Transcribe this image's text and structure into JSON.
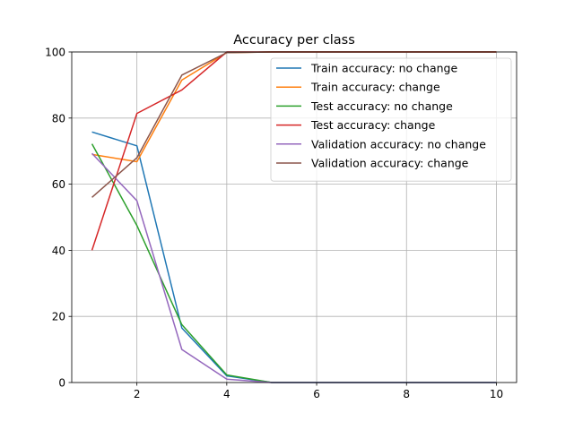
{
  "chart_data": {
    "type": "line",
    "title": "Accuracy per class",
    "xlabel": "",
    "ylabel": "",
    "x": [
      1,
      2,
      3,
      4,
      5,
      6,
      7,
      8,
      9,
      10
    ],
    "xlim": [
      0.55,
      10.45
    ],
    "ylim": [
      0,
      100
    ],
    "xticks": [
      2,
      4,
      6,
      8,
      10
    ],
    "yticks": [
      0,
      20,
      40,
      60,
      80,
      100
    ],
    "grid": true,
    "legend_position": "top-right",
    "series": [
      {
        "name": "Train accuracy: no change",
        "color": "#1f77b4",
        "values": [
          75.8,
          71.6,
          16.5,
          2.0,
          0.0,
          0.0,
          0.0,
          0.0,
          0.0,
          0.0
        ]
      },
      {
        "name": "Train accuracy: change",
        "color": "#ff7f0e",
        "values": [
          69.0,
          66.8,
          91.5,
          99.8,
          100.0,
          100.0,
          100.0,
          100.0,
          100.0,
          100.0
        ]
      },
      {
        "name": "Test accuracy: no change",
        "color": "#2ca02c",
        "values": [
          72.2,
          47.5,
          17.5,
          2.3,
          0.0,
          0.0,
          0.0,
          0.0,
          0.0,
          0.0
        ]
      },
      {
        "name": "Test accuracy: change",
        "color": "#d62728",
        "values": [
          40.0,
          81.4,
          88.5,
          100.0,
          100.0,
          100.0,
          100.0,
          100.0,
          100.0,
          100.0
        ]
      },
      {
        "name": "Validation accuracy: no change",
        "color": "#9467bd",
        "values": [
          69.3,
          55.0,
          10.0,
          1.0,
          0.0,
          0.0,
          0.0,
          0.0,
          0.0,
          0.0
        ]
      },
      {
        "name": "Validation accuracy: change",
        "color": "#8c564b",
        "values": [
          56.0,
          68.0,
          93.0,
          99.8,
          100.0,
          100.0,
          100.0,
          100.0,
          100.0,
          100.0
        ]
      }
    ]
  }
}
